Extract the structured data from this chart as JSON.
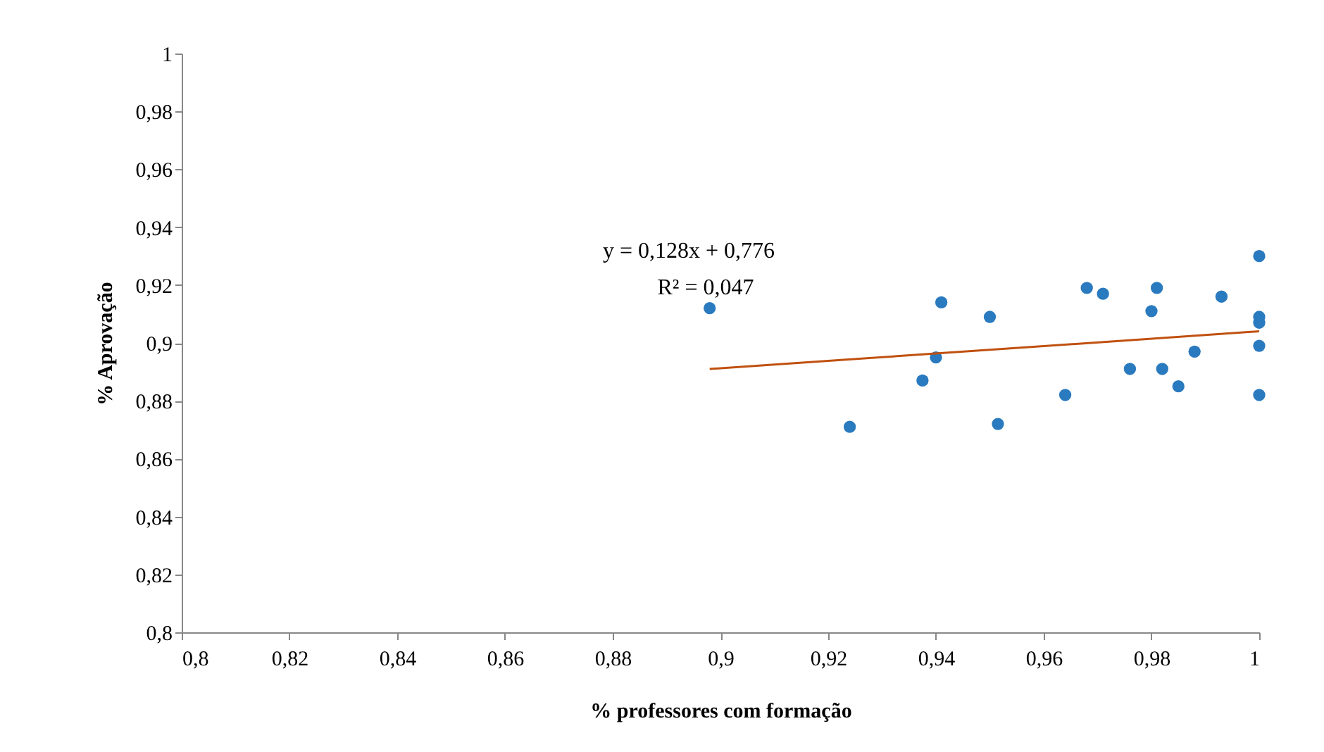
{
  "chart_data": {
    "type": "scatter",
    "xlabel": "% professores com formação",
    "ylabel": "% Aprovação",
    "xlim": [
      0.8,
      1
    ],
    "ylim": [
      0.8,
      1
    ],
    "xticks": [
      {
        "value": 0.8,
        "label": "0,8"
      },
      {
        "value": 0.82,
        "label": "0,82"
      },
      {
        "value": 0.84,
        "label": "0,84"
      },
      {
        "value": 0.86,
        "label": "0,86"
      },
      {
        "value": 0.88,
        "label": "0,88"
      },
      {
        "value": 0.9,
        "label": "0,9"
      },
      {
        "value": 0.92,
        "label": "0,92"
      },
      {
        "value": 0.94,
        "label": "0,94"
      },
      {
        "value": 0.96,
        "label": "0,96"
      },
      {
        "value": 0.98,
        "label": "0,98"
      },
      1
    ],
    "yticks": [
      {
        "value": 0.8,
        "label": "0,8"
      },
      {
        "value": 0.82,
        "label": "0,82"
      },
      {
        "value": 0.84,
        "label": "0,84"
      },
      {
        "value": 0.86,
        "label": "0,86"
      },
      {
        "value": 0.88,
        "label": "0,88"
      },
      {
        "value": 0.9,
        "label": "0,9"
      },
      {
        "value": 0.92,
        "label": "0,92"
      },
      {
        "value": 0.94,
        "label": "0,94"
      },
      {
        "value": 0.96,
        "label": "0,96"
      },
      {
        "value": 0.98,
        "label": "0,98"
      },
      1
    ],
    "grid": false,
    "series": [
      {
        "marker": "circle",
        "color": "#2a7abf",
        "x": [
          0.898,
          0.924,
          0.9375,
          0.94,
          0.941,
          0.95,
          0.9515,
          0.964,
          0.968,
          0.971,
          0.976,
          0.98,
          0.981,
          0.982,
          0.985,
          0.988,
          0.993,
          1,
          1,
          1,
          1,
          1
        ],
        "values": [
          0.912,
          0.871,
          0.887,
          0.895,
          0.914,
          0.909,
          0.872,
          0.882,
          0.919,
          0.917,
          0.891,
          0.911,
          0.919,
          0.891,
          0.885,
          0.897,
          0.916,
          0.93,
          0.909,
          0.907,
          0.899,
          0.882
        ]
      },
      {
        "type": "line",
        "marker": "none",
        "color": "#c0500f",
        "x": [
          0.898,
          1
        ],
        "values": [
          0.891,
          0.904
        ]
      }
    ],
    "annotations": [
      "y = 0,128x  + 0,776",
      "R² = 0,047"
    ]
  }
}
